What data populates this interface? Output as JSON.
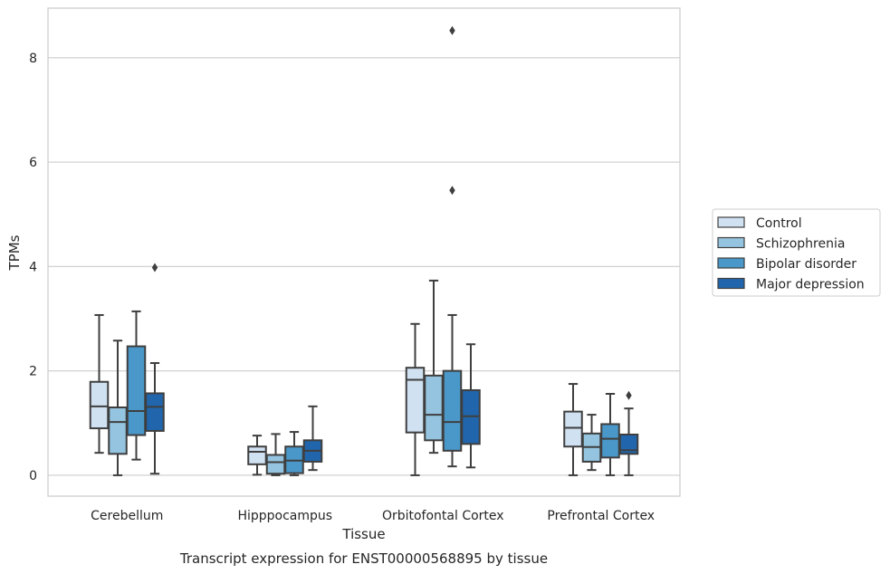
{
  "chart_data": {
    "type": "box",
    "title": "",
    "caption": "Transcript expression for ENST00000568895 by tissue",
    "xlabel": "Tissue",
    "ylabel": "TPMs",
    "ylim": [
      -0.4,
      8.95
    ],
    "yticks": [
      0,
      2,
      4,
      6,
      8
    ],
    "grid": "horizontal",
    "legend_placement": "right",
    "categories": [
      "Cerebellum",
      "Hipppocampus",
      "Orbitofontal Cortex",
      "Prefrontal Cortex"
    ],
    "series": [
      {
        "name": "Control",
        "color": "#d0e1f2",
        "boxes": [
          {
            "whislo": 0.43,
            "q1": 0.9,
            "med": 1.32,
            "q3": 1.79,
            "whishi": 3.07,
            "fliers": []
          },
          {
            "whislo": 0.01,
            "q1": 0.21,
            "med": 0.45,
            "q3": 0.55,
            "whishi": 0.76,
            "fliers": []
          },
          {
            "whislo": 0.0,
            "q1": 0.82,
            "med": 1.83,
            "q3": 2.06,
            "whishi": 2.9,
            "fliers": []
          },
          {
            "whislo": 0.0,
            "q1": 0.55,
            "med": 0.91,
            "q3": 1.22,
            "whishi": 1.75,
            "fliers": []
          }
        ]
      },
      {
        "name": "Schizophrenia",
        "color": "#94c4df",
        "boxes": [
          {
            "whislo": 0.0,
            "q1": 0.41,
            "med": 1.02,
            "q3": 1.3,
            "whishi": 2.58,
            "fliers": []
          },
          {
            "whislo": 0.0,
            "q1": 0.03,
            "med": 0.25,
            "q3": 0.39,
            "whishi": 0.79,
            "fliers": []
          },
          {
            "whislo": 0.43,
            "q1": 0.67,
            "med": 1.16,
            "q3": 1.91,
            "whishi": 3.73,
            "fliers": []
          },
          {
            "whislo": 0.1,
            "q1": 0.26,
            "med": 0.54,
            "q3": 0.8,
            "whishi": 1.16,
            "fliers": []
          }
        ]
      },
      {
        "name": "Bipolar disorder",
        "color": "#4a98c9",
        "boxes": [
          {
            "whislo": 0.3,
            "q1": 0.77,
            "med": 1.23,
            "q3": 2.47,
            "whishi": 3.14,
            "fliers": []
          },
          {
            "whislo": 0.0,
            "q1": 0.04,
            "med": 0.28,
            "q3": 0.55,
            "whishi": 0.83,
            "fliers": []
          },
          {
            "whislo": 0.17,
            "q1": 0.47,
            "med": 1.02,
            "q3": 2.0,
            "whishi": 3.07,
            "fliers": [
              5.46,
              8.52
            ]
          },
          {
            "whislo": 0.0,
            "q1": 0.34,
            "med": 0.7,
            "q3": 0.98,
            "whishi": 1.56,
            "fliers": []
          }
        ]
      },
      {
        "name": "Major depression",
        "color": "#2166ac",
        "boxes": [
          {
            "whislo": 0.03,
            "q1": 0.85,
            "med": 1.31,
            "q3": 1.57,
            "whishi": 2.15,
            "fliers": [
              3.98
            ]
          },
          {
            "whislo": 0.1,
            "q1": 0.26,
            "med": 0.47,
            "q3": 0.67,
            "whishi": 1.32,
            "fliers": []
          },
          {
            "whislo": 0.15,
            "q1": 0.6,
            "med": 1.13,
            "q3": 1.63,
            "whishi": 2.51,
            "fliers": []
          },
          {
            "whislo": 0.0,
            "q1": 0.41,
            "med": 0.48,
            "q3": 0.78,
            "whishi": 1.28,
            "fliers": [
              1.53
            ]
          }
        ]
      }
    ]
  }
}
